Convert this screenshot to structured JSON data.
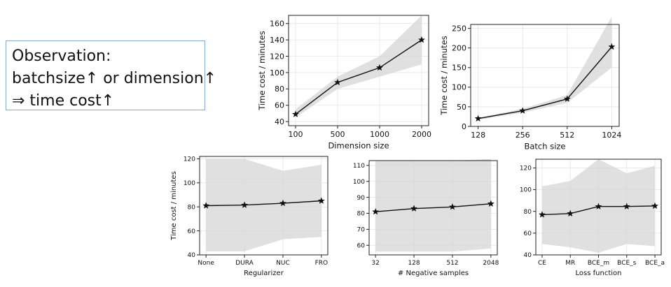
{
  "observation": {
    "line1": "Observation:",
    "line2": "batchsize↑ or dimension↑",
    "line3": "⇒ time cost↑"
  },
  "chart_data": [
    {
      "type": "line",
      "xlabel": "Dimension size",
      "ylabel": "Time cost / minutes",
      "categories": [
        "100",
        "500",
        "1000",
        "2000"
      ],
      "values": [
        49,
        88,
        106,
        140
      ],
      "band_upper": [
        55,
        95,
        120,
        170
      ],
      "band_lower": [
        45,
        80,
        95,
        110
      ],
      "ylim": [
        35,
        170
      ],
      "yticks": [
        40,
        60,
        80,
        100,
        120,
        140,
        160
      ],
      "grid": true,
      "marker": "star"
    },
    {
      "type": "line",
      "xlabel": "Batch size",
      "ylabel": "Time cost / minutes",
      "categories": [
        "128",
        "256",
        "512",
        "1024"
      ],
      "values": [
        20,
        40,
        70,
        203
      ],
      "band_upper": [
        22,
        45,
        80,
        280
      ],
      "band_lower": [
        17,
        35,
        60,
        150
      ],
      "ylim": [
        0,
        260
      ],
      "yticks": [
        0,
        50,
        100,
        150,
        200,
        250
      ],
      "grid": true,
      "marker": "star"
    },
    {
      "type": "line",
      "xlabel": "Regularizer",
      "ylabel": "Time cost / minutes",
      "categories": [
        "None",
        "DURA",
        "NUC",
        "FRO"
      ],
      "values": [
        81,
        81.5,
        83,
        85
      ],
      "band_upper": [
        120,
        120,
        110,
        115
      ],
      "band_lower": [
        43,
        43,
        53,
        55
      ],
      "ylim": [
        40,
        122
      ],
      "yticks": [
        40,
        60,
        80,
        100,
        120
      ],
      "grid": true,
      "marker": "star"
    },
    {
      "type": "line",
      "xlabel": "# Negative samples",
      "ylabel": "",
      "categories": [
        "32",
        "128",
        "512",
        "2048"
      ],
      "values": [
        81,
        83,
        84,
        86
      ],
      "band_upper": [
        113,
        113,
        113,
        114
      ],
      "band_lower": [
        56,
        56,
        56,
        58
      ],
      "ylim": [
        54,
        113
      ],
      "yticks": [
        60,
        70,
        80,
        90,
        100,
        110
      ],
      "grid": true,
      "marker": "star"
    },
    {
      "type": "line",
      "xlabel": "Loss function",
      "ylabel": "",
      "categories": [
        "CE",
        "MR",
        "BCE_m",
        "BCE_s",
        "BCE_a"
      ],
      "values": [
        77,
        78,
        84.5,
        84.5,
        85
      ],
      "band_upper": [
        103,
        108,
        128,
        115,
        122
      ],
      "band_lower": [
        50,
        47,
        42,
        50,
        48
      ],
      "ylim": [
        40,
        128
      ],
      "yticks": [
        40,
        60,
        80,
        100,
        120
      ],
      "grid": true,
      "marker": "star"
    }
  ]
}
